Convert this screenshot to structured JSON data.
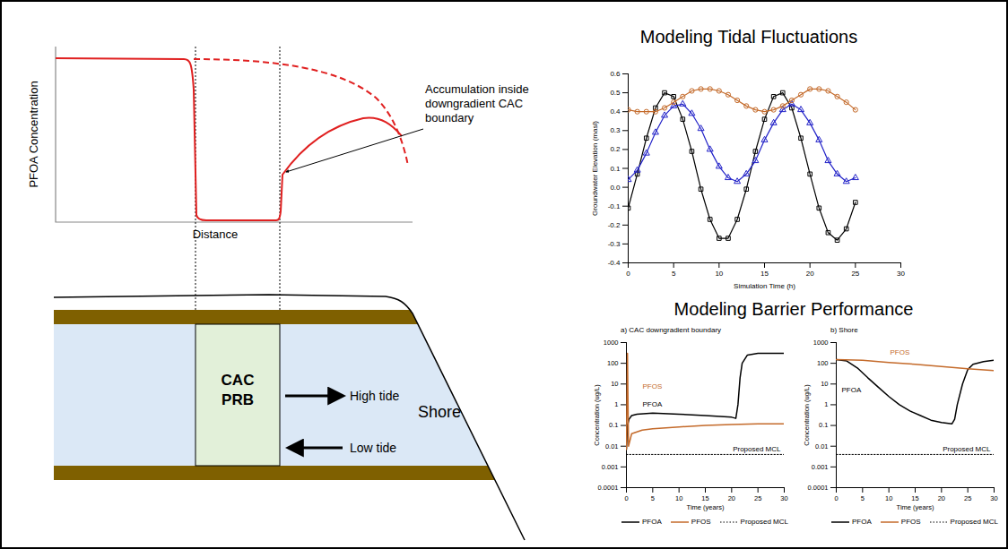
{
  "schematic": {
    "concentration_sketch": {
      "y_label": "PFOA Concentration",
      "x_label": "Distance",
      "annotation": "Accumulation inside downgradient CAC boundary"
    },
    "cross_section": {
      "barrier": "CAC PRB",
      "arrows": [
        "High tide",
        "Low tide"
      ],
      "shore": "Shore"
    }
  },
  "chart_data": [
    {
      "type": "line",
      "title": "Modeling Tidal Fluctuations",
      "x_label": "Simulation Time (h)",
      "y_label": "Groundwater Elevation (masl)",
      "x": [
        0,
        1,
        2,
        3,
        4,
        5,
        6,
        7,
        8,
        9,
        10,
        11,
        12,
        13,
        14,
        15,
        16,
        17,
        18,
        19,
        20,
        21,
        22,
        23,
        24,
        25
      ],
      "xlim": [
        0,
        30
      ],
      "xticks": [
        0,
        5,
        10,
        15,
        20,
        25,
        30
      ],
      "ylim": [
        -0.4,
        0.6
      ],
      "yticks": [
        -0.4,
        -0.3,
        -0.2,
        -0.1,
        {
          "value": 0,
          "label": "0.0"
        },
        0.1,
        0.2,
        0.3,
        0.4,
        0.5,
        0.6
      ],
      "series": [
        {
          "color": "#000000",
          "marker": "square",
          "values": [
            -0.11,
            0.07,
            0.26,
            0.42,
            0.5,
            0.48,
            0.36,
            0.19,
            -0.01,
            -0.17,
            -0.27,
            -0.27,
            -0.17,
            -0.01,
            0.19,
            0.36,
            0.48,
            0.5,
            0.42,
            0.26,
            0.07,
            -0.11,
            -0.24,
            -0.28,
            -0.22,
            -0.08
          ]
        },
        {
          "color": "#2323c8",
          "marker": "triangle",
          "values": [
            0.04,
            0.09,
            0.18,
            0.29,
            0.38,
            0.43,
            0.44,
            0.39,
            0.31,
            0.2,
            0.11,
            0.05,
            0.03,
            0.07,
            0.14,
            0.25,
            0.34,
            0.41,
            0.44,
            0.41,
            0.34,
            0.25,
            0.14,
            0.07,
            0.03,
            0.05
          ]
        },
        {
          "color": "#c46a2a",
          "marker": "circle",
          "values": [
            0.41,
            0.4,
            0.4,
            0.4,
            0.42,
            0.45,
            0.48,
            0.51,
            0.52,
            0.52,
            0.51,
            0.49,
            0.46,
            0.43,
            0.41,
            0.4,
            0.41,
            0.43,
            0.46,
            0.49,
            0.52,
            0.52,
            0.51,
            0.48,
            0.45,
            0.41
          ]
        }
      ]
    },
    {
      "type": "line",
      "title": "Modeling Barrier Performance",
      "subtitle": "a) CAC downgradient boundary",
      "x_label": "Time (years)",
      "y_label": "Concentration (ug/L)",
      "log": "y",
      "legend": "bottom",
      "xlim": [
        0,
        30
      ],
      "xticks": [
        0,
        5,
        10,
        15,
        20,
        25,
        30
      ],
      "ylim": [
        0.0001,
        1000
      ],
      "yticks": [
        0.0001,
        0.001,
        0.01,
        0.1,
        1,
        10,
        100,
        1000
      ],
      "series": [
        {
          "name": "PFOA",
          "color": "#000000",
          "line_style": "solid",
          "x": [
            0,
            0.2,
            0.5,
            1,
            2,
            5,
            10,
            15,
            20,
            20.8,
            21.2,
            21.6,
            22,
            23,
            25,
            30
          ],
          "values": [
            0.007,
            0.1,
            0.2,
            0.3,
            0.35,
            0.4,
            0.35,
            0.3,
            0.25,
            0.22,
            1,
            20,
            100,
            250,
            300,
            300
          ]
        },
        {
          "name": "PFOS",
          "color": "#c46a2a",
          "line_style": "solid",
          "x": [
            0,
            0.2,
            0.4,
            1,
            3,
            5,
            10,
            15,
            20,
            25,
            30
          ],
          "values": [
            0.007,
            300,
            0.01,
            0.04,
            0.06,
            0.07,
            0.085,
            0.1,
            0.11,
            0.12,
            0.12
          ]
        },
        {
          "name": "Proposed MCL",
          "color": "#000000",
          "line_style": "dotted",
          "x": [
            0,
            30
          ],
          "values": [
            0.004,
            0.004
          ]
        }
      ]
    },
    {
      "type": "line",
      "subtitle": "b) Shore",
      "x_label": "Time (years)",
      "y_label": "Concentration (ug/L)",
      "log": "y",
      "legend": "bottom",
      "xlim": [
        0,
        30
      ],
      "xticks": [
        0,
        5,
        10,
        15,
        20,
        25,
        30
      ],
      "ylim": [
        0.0001,
        1000
      ],
      "yticks": [
        0.0001,
        0.001,
        0.01,
        0.1,
        1,
        10,
        100,
        1000
      ],
      "series": [
        {
          "name": "PFOA",
          "color": "#000000",
          "line_style": "solid",
          "x": [
            0,
            2,
            4,
            6,
            8,
            10,
            12,
            14,
            16,
            18,
            20,
            22,
            22.5,
            23,
            24,
            25,
            26,
            28,
            30
          ],
          "values": [
            150,
            130,
            60,
            20,
            7,
            2.5,
            1,
            0.5,
            0.3,
            0.18,
            0.14,
            0.12,
            0.2,
            1,
            10,
            50,
            90,
            120,
            140
          ]
        },
        {
          "name": "PFOS",
          "color": "#c46a2a",
          "line_style": "solid",
          "x": [
            0,
            5,
            10,
            15,
            20,
            25,
            30
          ],
          "values": [
            150,
            140,
            110,
            90,
            70,
            55,
            45
          ]
        },
        {
          "name": "Proposed MCL",
          "color": "#000000",
          "line_style": "dotted",
          "x": [
            0,
            30
          ],
          "values": [
            0.004,
            0.004
          ]
        }
      ]
    }
  ]
}
